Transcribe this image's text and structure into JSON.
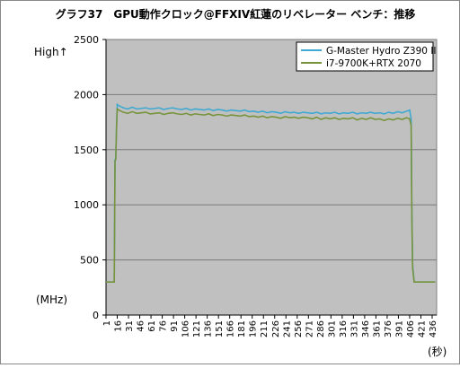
{
  "chart_data": {
    "type": "line",
    "title": "グラフ37　GPU動作クロック@FFXIV紅蓮のリベレーター ベンチ：推移",
    "annotations": [
      "High↑",
      "(MHz)",
      "(秒)"
    ],
    "x": [
      1,
      6,
      11,
      12,
      13,
      14,
      15,
      16,
      18,
      24,
      30,
      36,
      42,
      48,
      54,
      60,
      66,
      72,
      78,
      84,
      90,
      96,
      102,
      108,
      114,
      120,
      126,
      132,
      138,
      144,
      150,
      156,
      162,
      168,
      174,
      180,
      186,
      192,
      198,
      204,
      210,
      216,
      222,
      228,
      234,
      240,
      246,
      252,
      258,
      264,
      270,
      276,
      282,
      288,
      294,
      300,
      306,
      312,
      318,
      324,
      330,
      336,
      342,
      348,
      354,
      360,
      366,
      372,
      378,
      384,
      390,
      396,
      402,
      406,
      408,
      409,
      410,
      412,
      420,
      430,
      440
    ],
    "series": [
      {
        "name": "G-Master Hydro Z390 II",
        "color": "#3fa9d2",
        "values": [
          300,
          300,
          300,
          300,
          1410,
          1420,
          1700,
          1910,
          1900,
          1880,
          1870,
          1885,
          1870,
          1875,
          1880,
          1870,
          1875,
          1880,
          1865,
          1875,
          1880,
          1870,
          1865,
          1875,
          1860,
          1870,
          1865,
          1860,
          1870,
          1855,
          1865,
          1860,
          1850,
          1860,
          1855,
          1850,
          1860,
          1845,
          1850,
          1840,
          1850,
          1835,
          1845,
          1840,
          1830,
          1845,
          1835,
          1840,
          1830,
          1840,
          1835,
          1830,
          1840,
          1825,
          1835,
          1830,
          1840,
          1825,
          1835,
          1830,
          1840,
          1825,
          1835,
          1830,
          1840,
          1830,
          1835,
          1825,
          1840,
          1830,
          1845,
          1835,
          1850,
          1860,
          1780,
          900,
          450,
          300,
          300,
          300,
          300
        ]
      },
      {
        "name": "i7-9700K+RTX 2070",
        "color": "#77933c",
        "values": [
          300,
          300,
          300,
          300,
          1400,
          1410,
          1690,
          1870,
          1860,
          1840,
          1830,
          1845,
          1830,
          1835,
          1840,
          1825,
          1830,
          1835,
          1820,
          1830,
          1835,
          1825,
          1820,
          1830,
          1815,
          1825,
          1820,
          1815,
          1825,
          1810,
          1820,
          1815,
          1805,
          1815,
          1810,
          1805,
          1815,
          1800,
          1805,
          1795,
          1805,
          1790,
          1800,
          1795,
          1785,
          1800,
          1790,
          1795,
          1785,
          1795,
          1790,
          1780,
          1795,
          1775,
          1790,
          1780,
          1790,
          1775,
          1785,
          1780,
          1790,
          1770,
          1785,
          1775,
          1790,
          1775,
          1780,
          1765,
          1780,
          1770,
          1785,
          1775,
          1790,
          1780,
          1720,
          850,
          420,
          300,
          300,
          300,
          300
        ]
      }
    ],
    "xlim": [
      1,
      442
    ],
    "xticks": [
      1,
      16,
      31,
      46,
      61,
      76,
      91,
      106,
      121,
      136,
      151,
      166,
      181,
      196,
      211,
      226,
      241,
      256,
      271,
      286,
      301,
      316,
      331,
      346,
      361,
      376,
      391,
      406,
      421,
      436
    ],
    "ylim": [
      0,
      2500
    ],
    "yticks": [
      0,
      500,
      1000,
      1500,
      2000,
      2500
    ],
    "grid": true,
    "legend": "upper right"
  }
}
